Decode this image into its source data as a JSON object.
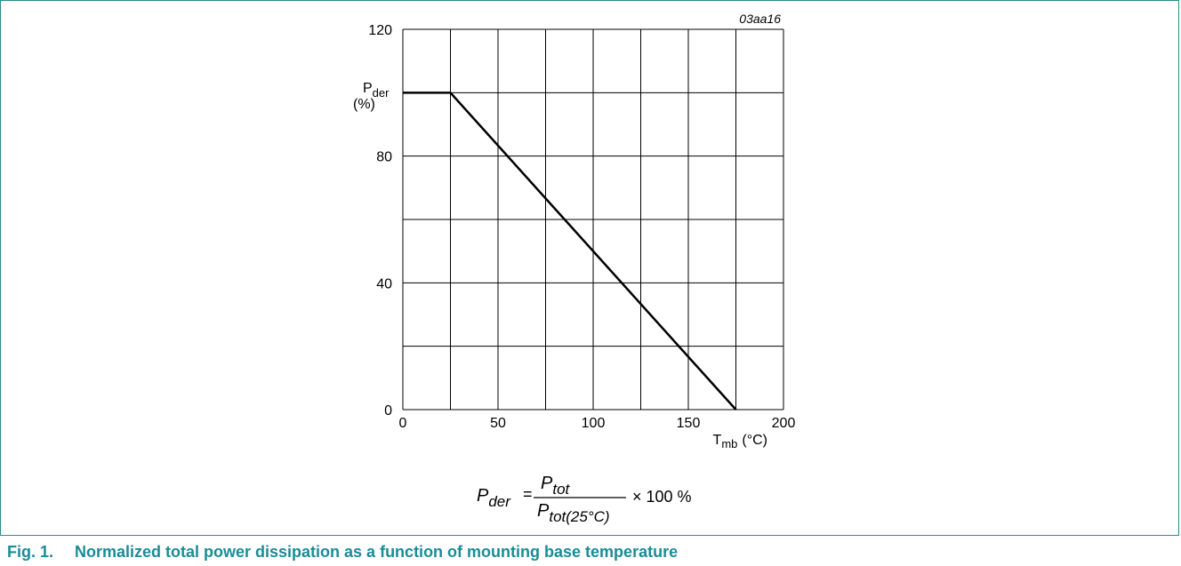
{
  "figure": {
    "code": "03aa16",
    "caption_number": "Fig. 1.",
    "caption_text": "Normalized total power dissipation as a function of mounting base temperature"
  },
  "formula": {
    "lhs": "P",
    "lhs_sub": "der",
    "equals": "=",
    "numerator": "P",
    "numerator_sub": "tot",
    "denominator": "P",
    "denominator_sub": "tot(25°C)",
    "multiplier": "× 100 %"
  },
  "chart_data": {
    "type": "line",
    "ylabel": "P",
    "ylabel_sub": "der",
    "ylabel_unit": "(%)",
    "xlabel": "T",
    "xlabel_sub": "mb",
    "xlabel_unit": "(°C)",
    "xlim": [
      0,
      200
    ],
    "ylim": [
      0,
      120
    ],
    "x_ticks": [
      0,
      50,
      100,
      150,
      200
    ],
    "y_ticks": [
      0,
      40,
      80,
      120
    ],
    "x_grid_step": 25,
    "y_grid_step": 20,
    "grid": true,
    "series": [
      {
        "x": [
          0,
          25,
          175
        ],
        "y": [
          100,
          100,
          0
        ]
      }
    ],
    "line_color": "#000000"
  },
  "colors": {
    "frame": "#2e8b8b",
    "caption": "#1a8c96"
  }
}
